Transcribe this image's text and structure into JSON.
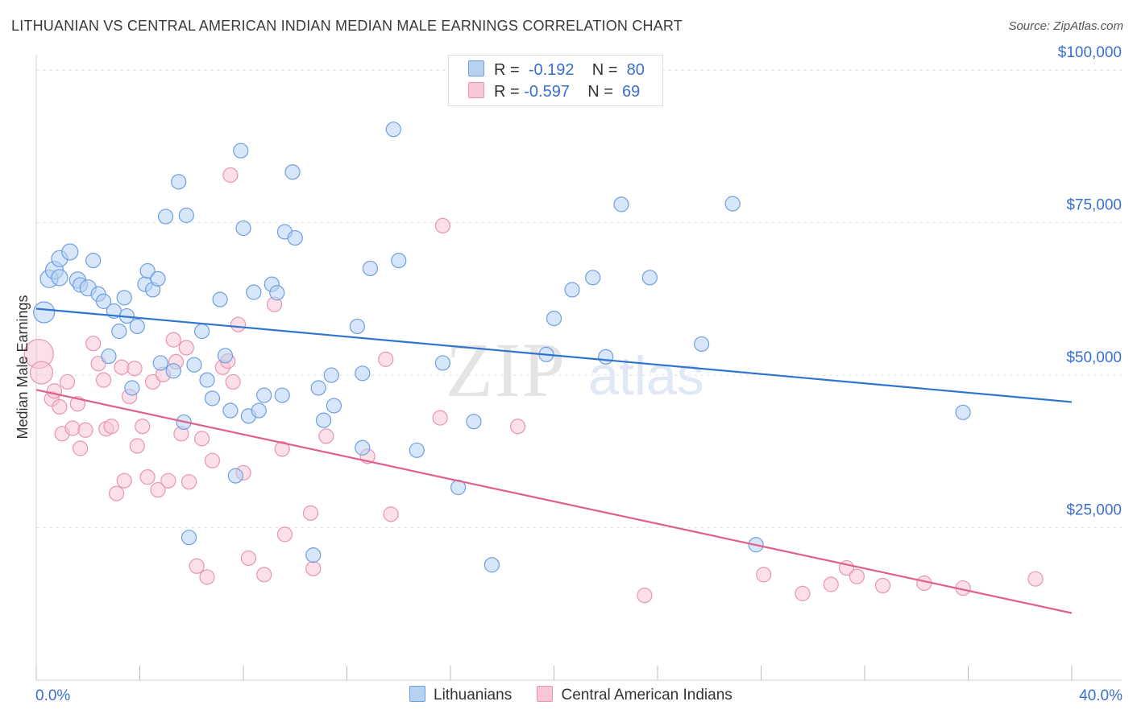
{
  "title": "LITHUANIAN VS CENTRAL AMERICAN INDIAN MEDIAN MALE EARNINGS CORRELATION CHART",
  "source": "Source: ZipAtlas.com",
  "watermark": {
    "zip": "ZIP",
    "atlas": "atlas"
  },
  "legend": {
    "rows": [
      {
        "r_label": "R =",
        "r_value": "-0.192",
        "n_label": "N =",
        "n_value": "80",
        "color": "#a8c8f0",
        "border": "#6b9fe0"
      },
      {
        "r_label": "R =",
        "r_value": "-0.597",
        "n_label": "N =",
        "n_value": "69",
        "color": "#f9c6d6",
        "border": "#e889a8"
      }
    ]
  },
  "colors": {
    "blue_fill": "#b7d1f3",
    "blue_stroke": "#6e9fe0",
    "blue_line": "#2f74d0",
    "pink_fill": "#f8c7d6",
    "pink_stroke": "#e994b0",
    "pink_line": "#e0608a",
    "axis_text": "#3a6fcf",
    "grid": "#e2e2e2"
  },
  "chart_data": {
    "type": "scatter",
    "title": "LITHUANIAN VS CENTRAL AMERICAN INDIAN MEDIAN MALE EARNINGS CORRELATION CHART",
    "xlabel": "",
    "ylabel": "Median Male Earnings",
    "xlim": [
      0,
      40
    ],
    "ylim": [
      0,
      102000
    ],
    "x_tick_labels": [
      "0.0%",
      "40.0%"
    ],
    "y_ticks": [
      25000,
      50000,
      75000,
      100000
    ],
    "y_tick_labels": [
      "$25,000",
      "$50,000",
      "$75,000",
      "$100,000"
    ],
    "grid": true,
    "legend_position": "top-center",
    "series": [
      {
        "name": "Lithuanians",
        "trend": [
          [
            0,
            60900
          ],
          [
            40,
            45600
          ]
        ],
        "points": [
          [
            0.3,
            60300,
            13
          ],
          [
            0.5,
            65800,
            11
          ],
          [
            0.7,
            67200,
            11
          ],
          [
            0.9,
            66000,
            10
          ],
          [
            0.9,
            69100,
            10
          ],
          [
            1.3,
            70200,
            10
          ],
          [
            1.6,
            65600,
            10
          ],
          [
            1.7,
            64800,
            9
          ],
          [
            2.0,
            64300,
            10
          ],
          [
            2.2,
            68800,
            9
          ],
          [
            2.4,
            63300,
            9
          ],
          [
            2.6,
            62100,
            9
          ],
          [
            2.8,
            53100,
            9
          ],
          [
            3.0,
            60500,
            9
          ],
          [
            3.2,
            57200,
            9
          ],
          [
            3.4,
            62700,
            9
          ],
          [
            3.5,
            59700,
            9
          ],
          [
            3.7,
            47900,
            9
          ],
          [
            3.9,
            58000,
            9
          ],
          [
            4.2,
            64900,
            9
          ],
          [
            4.3,
            67100,
            9
          ],
          [
            4.5,
            64000,
            9
          ],
          [
            4.7,
            65800,
            9
          ],
          [
            4.8,
            52000,
            9
          ],
          [
            5.0,
            76000,
            9
          ],
          [
            5.3,
            50700,
            9
          ],
          [
            5.5,
            81700,
            9
          ],
          [
            5.7,
            42300,
            9
          ],
          [
            5.8,
            76200,
            9
          ],
          [
            5.9,
            23400,
            9
          ],
          [
            6.1,
            51700,
            9
          ],
          [
            6.4,
            57200,
            9
          ],
          [
            6.6,
            49200,
            9
          ],
          [
            6.8,
            46200,
            9
          ],
          [
            7.1,
            62400,
            9
          ],
          [
            7.3,
            53200,
            9
          ],
          [
            7.5,
            44200,
            9
          ],
          [
            7.7,
            33500,
            9
          ],
          [
            7.9,
            86800,
            9
          ],
          [
            8.0,
            74100,
            9
          ],
          [
            8.2,
            43300,
            9
          ],
          [
            8.4,
            63600,
            9
          ],
          [
            8.6,
            44200,
            9
          ],
          [
            8.8,
            46700,
            9
          ],
          [
            9.1,
            64900,
            9
          ],
          [
            9.3,
            63500,
            9
          ],
          [
            9.5,
            46700,
            9
          ],
          [
            9.6,
            73500,
            9
          ],
          [
            9.9,
            83300,
            9
          ],
          [
            10.0,
            72500,
            9
          ],
          [
            10.7,
            20500,
            9
          ],
          [
            10.9,
            47900,
            9
          ],
          [
            11.1,
            42600,
            9
          ],
          [
            11.4,
            50000,
            9
          ],
          [
            11.5,
            45000,
            9
          ],
          [
            12.4,
            58000,
            9
          ],
          [
            12.6,
            50300,
            9
          ],
          [
            12.6,
            38100,
            9
          ],
          [
            12.9,
            67500,
            9
          ],
          [
            14.0,
            68800,
            9
          ],
          [
            13.8,
            90300,
            9
          ],
          [
            14.7,
            37700,
            9
          ],
          [
            15.7,
            52000,
            9
          ],
          [
            16.3,
            31600,
            9
          ],
          [
            16.9,
            42400,
            9
          ],
          [
            17.6,
            18900,
            9
          ],
          [
            19.7,
            53400,
            9
          ],
          [
            20.0,
            59300,
            9
          ],
          [
            20.7,
            64000,
            9
          ],
          [
            21.5,
            66000,
            9
          ],
          [
            22.0,
            53000,
            9
          ],
          [
            22.6,
            78000,
            9
          ],
          [
            23.7,
            66000,
            9
          ],
          [
            25.7,
            55100,
            9
          ],
          [
            26.9,
            78100,
            9
          ],
          [
            27.8,
            22200,
            9
          ],
          [
            35.8,
            43900,
            9
          ]
        ]
      },
      {
        "name": "Central American Indians",
        "trend": [
          [
            0,
            47600
          ],
          [
            40,
            11000
          ]
        ],
        "points": [
          [
            0.1,
            53500,
            18
          ],
          [
            0.2,
            50400,
            14
          ],
          [
            0.6,
            46100,
            9
          ],
          [
            0.7,
            47400,
            9
          ],
          [
            0.9,
            44800,
            9
          ],
          [
            1.0,
            40400,
            9
          ],
          [
            1.2,
            48900,
            9
          ],
          [
            1.4,
            41300,
            9
          ],
          [
            1.6,
            45300,
            9
          ],
          [
            1.7,
            38000,
            9
          ],
          [
            1.9,
            41000,
            9
          ],
          [
            2.2,
            55200,
            9
          ],
          [
            2.4,
            51900,
            9
          ],
          [
            2.6,
            49200,
            9
          ],
          [
            2.7,
            41200,
            9
          ],
          [
            2.9,
            41600,
            9
          ],
          [
            3.1,
            30600,
            9
          ],
          [
            3.3,
            51300,
            9
          ],
          [
            3.4,
            32700,
            9
          ],
          [
            3.6,
            46500,
            9
          ],
          [
            3.8,
            51100,
            9
          ],
          [
            3.9,
            38400,
            9
          ],
          [
            4.1,
            41600,
            9
          ],
          [
            4.3,
            33300,
            9
          ],
          [
            4.5,
            48900,
            9
          ],
          [
            4.7,
            31200,
            9
          ],
          [
            4.9,
            50100,
            9
          ],
          [
            5.1,
            32700,
            9
          ],
          [
            5.3,
            55800,
            9
          ],
          [
            5.4,
            52200,
            9
          ],
          [
            5.6,
            40400,
            9
          ],
          [
            5.8,
            54500,
            9
          ],
          [
            5.9,
            32500,
            9
          ],
          [
            6.2,
            18700,
            9
          ],
          [
            6.4,
            39600,
            9
          ],
          [
            6.6,
            16900,
            9
          ],
          [
            6.8,
            36000,
            9
          ],
          [
            7.2,
            51300,
            9
          ],
          [
            7.4,
            52300,
            9
          ],
          [
            7.5,
            82800,
            9
          ],
          [
            7.6,
            48900,
            9
          ],
          [
            7.8,
            58300,
            9
          ],
          [
            8.0,
            34000,
            9
          ],
          [
            8.2,
            20000,
            9
          ],
          [
            8.8,
            17300,
            9
          ],
          [
            9.2,
            61600,
            9
          ],
          [
            9.5,
            37900,
            9
          ],
          [
            9.6,
            23900,
            9
          ],
          [
            10.6,
            27400,
            9
          ],
          [
            10.7,
            18300,
            9
          ],
          [
            11.2,
            40000,
            9
          ],
          [
            12.8,
            36700,
            9
          ],
          [
            13.5,
            52600,
            9
          ],
          [
            13.7,
            27200,
            9
          ],
          [
            15.6,
            43000,
            9
          ],
          [
            15.7,
            74500,
            9
          ],
          [
            18.6,
            41600,
            9
          ],
          [
            23.5,
            13900,
            9
          ],
          [
            28.1,
            17300,
            9
          ],
          [
            29.6,
            14200,
            9
          ],
          [
            30.7,
            15700,
            9
          ],
          [
            31.3,
            18400,
            9
          ],
          [
            31.7,
            17000,
            9
          ],
          [
            32.7,
            15500,
            9
          ],
          [
            34.3,
            15900,
            9
          ],
          [
            35.8,
            15100,
            9
          ],
          [
            38.6,
            16600,
            9
          ]
        ]
      }
    ]
  }
}
